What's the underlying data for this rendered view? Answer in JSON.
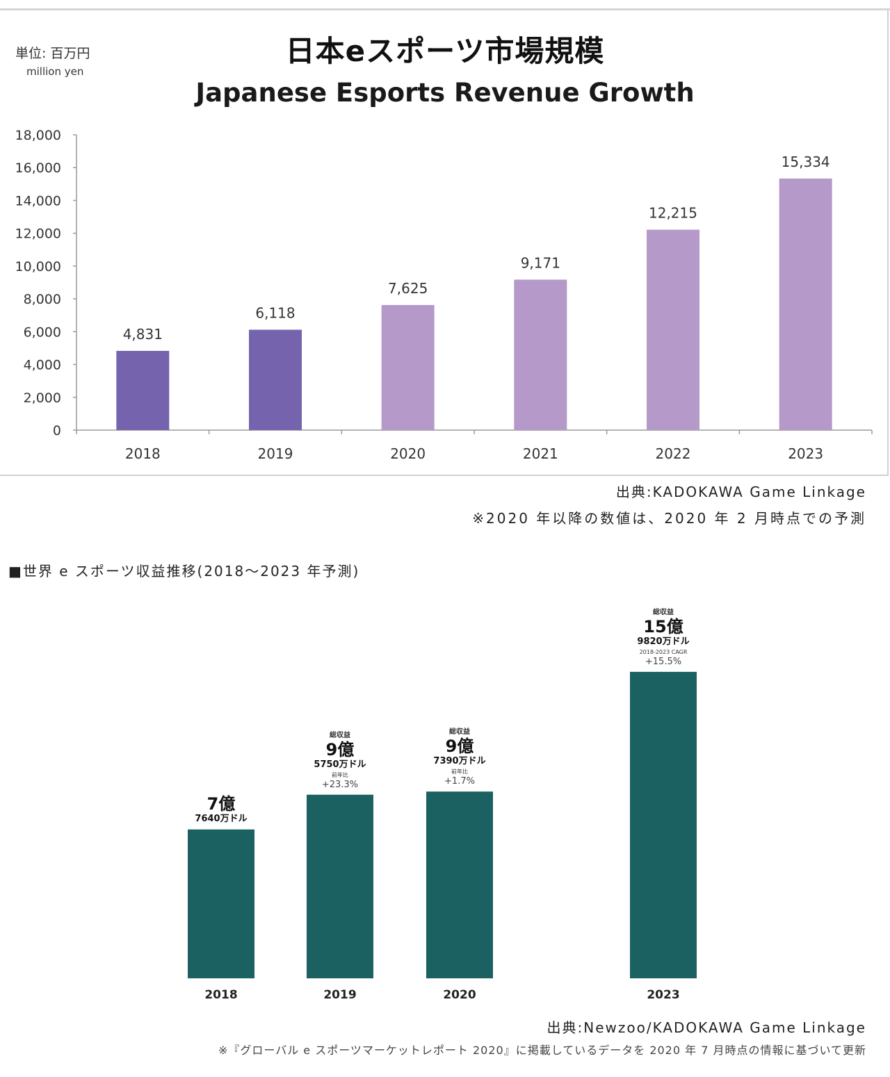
{
  "chart1": {
    "unit_jp": "単位: 百万円",
    "unit_en": "million yen",
    "title_jp": "日本eスポーツ市場規模",
    "title_en": "Japanese Esports Revenue Growth",
    "source": "出典:KADOKAWA Game Linkage",
    "note": "※2020 年以降の数値は、2020 年 2 月時点での予測",
    "colors": {
      "actual": "#7564ad",
      "forecast": "#b499c9",
      "axis": "#9a9a9a"
    }
  },
  "chart2": {
    "heading": "■世界 e スポーツ収益推移(2018〜2023 年予測)",
    "source": "出典:Newzoo/KADOKAWA Game Linkage",
    "note": "※『グローバル e スポーツマーケットレポート 2020』に掲載しているデータを 2020 年 7 月時点の情報に基づいて更新",
    "colors": {
      "bar": "#1c6161"
    },
    "labels": [
      {
        "small": "",
        "big": "7億",
        "mid": "7640万ドル",
        "tiny": "",
        "pct": ""
      },
      {
        "small": "総収益",
        "big": "9億",
        "mid": "5750万ドル",
        "tiny": "前年比",
        "pct": "+23.3%"
      },
      {
        "small": "総収益",
        "big": "9億",
        "mid": "7390万ドル",
        "tiny": "前年比",
        "pct": "+1.7%"
      },
      {
        "small": "総収益",
        "big": "15億",
        "mid": "9820万ドル",
        "tiny": "2018-2023 CAGR",
        "pct": "+15.5%"
      }
    ]
  },
  "chart_data": [
    {
      "type": "bar",
      "title": "日本eスポーツ市場規模 Japanese Esports Revenue Growth",
      "ylabel": "単位: 百万円 million yen",
      "categories": [
        "2018",
        "2019",
        "2020",
        "2021",
        "2022",
        "2023"
      ],
      "values": [
        4831,
        6118,
        7625,
        9171,
        12215,
        15334
      ],
      "data_labels": [
        "4,831",
        "6,118",
        "7,625",
        "9,171",
        "12,215",
        "15,334"
      ],
      "forecast_from_index": 2,
      "ylim": [
        0,
        18000
      ],
      "yticks": [
        "0",
        "2,000",
        "4,000",
        "6,000",
        "8,000",
        "10,000",
        "12,000",
        "14,000",
        "16,000",
        "18,000"
      ],
      "grid": false,
      "legend": "none"
    },
    {
      "type": "bar",
      "title": "",
      "categories": [
        "2018",
        "2019",
        "2020",
        "2023"
      ],
      "values": [
        7.764,
        9.575,
        9.739,
        15.982
      ],
      "unit": "億ドル",
      "grid": false,
      "legend": "none"
    }
  ]
}
